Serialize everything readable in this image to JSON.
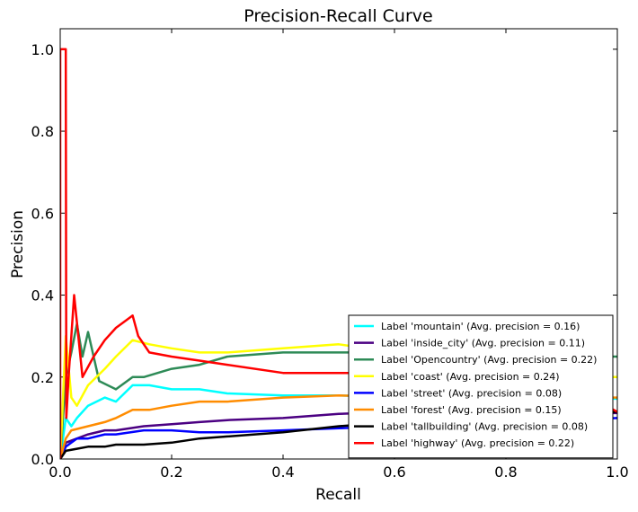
{
  "chart_data": {
    "type": "line",
    "title": "Precision-Recall Curve",
    "xlabel": "Recall",
    "ylabel": "Precision",
    "xlim": [
      0.0,
      1.0
    ],
    "ylim": [
      0.0,
      1.05
    ],
    "xticks": [
      "0.0",
      "0.2",
      "0.4",
      "0.6",
      "0.8",
      "1.0"
    ],
    "yticks": [
      "0.0",
      "0.2",
      "0.4",
      "0.6",
      "0.8",
      "1.0"
    ],
    "grid": false,
    "legend_position": "lower-right",
    "series": [
      {
        "name": "Label 'mountain' (Avg. precision = 0.16)",
        "color": "#00ffff",
        "x": [
          0.0,
          0.01,
          0.02,
          0.03,
          0.05,
          0.08,
          0.1,
          0.13,
          0.16,
          0.2,
          0.25,
          0.3,
          0.4,
          0.5,
          0.6,
          0.7,
          0.8,
          0.9,
          1.0
        ],
        "y": [
          0.0,
          0.1,
          0.08,
          0.1,
          0.13,
          0.15,
          0.14,
          0.18,
          0.18,
          0.17,
          0.17,
          0.16,
          0.155,
          0.155,
          0.152,
          0.152,
          0.15,
          0.148,
          0.147
        ]
      },
      {
        "name": "Label 'inside_city' (Avg. precision = 0.11)",
        "color": "#4b0082",
        "x": [
          0.0,
          0.01,
          0.03,
          0.05,
          0.08,
          0.1,
          0.15,
          0.2,
          0.25,
          0.3,
          0.4,
          0.5,
          0.6,
          0.7,
          0.8,
          0.9,
          1.0
        ],
        "y": [
          0.0,
          0.04,
          0.05,
          0.06,
          0.07,
          0.07,
          0.08,
          0.085,
          0.09,
          0.095,
          0.1,
          0.11,
          0.115,
          0.115,
          0.113,
          0.112,
          0.112
        ]
      },
      {
        "name": "Label 'Opencountry' (Avg. precision = 0.22)",
        "color": "#2e8b57",
        "x": [
          0.0,
          0.01,
          0.02,
          0.03,
          0.04,
          0.05,
          0.07,
          0.1,
          0.13,
          0.15,
          0.2,
          0.25,
          0.3,
          0.4,
          0.5,
          0.6,
          0.7,
          0.8,
          0.9,
          1.0
        ],
        "y": [
          0.0,
          0.2,
          0.26,
          0.33,
          0.25,
          0.31,
          0.19,
          0.17,
          0.2,
          0.2,
          0.22,
          0.23,
          0.25,
          0.26,
          0.26,
          0.26,
          0.26,
          0.255,
          0.25,
          0.25
        ]
      },
      {
        "name": "Label 'coast' (Avg. precision = 0.24)",
        "color": "#ffff00",
        "x": [
          0.0,
          0.01,
          0.02,
          0.03,
          0.05,
          0.08,
          0.1,
          0.13,
          0.16,
          0.2,
          0.25,
          0.3,
          0.4,
          0.5,
          0.6,
          0.7,
          0.8,
          0.9,
          1.0
        ],
        "y": [
          0.0,
          0.3,
          0.15,
          0.13,
          0.18,
          0.22,
          0.25,
          0.29,
          0.28,
          0.27,
          0.26,
          0.26,
          0.27,
          0.28,
          0.26,
          0.25,
          0.23,
          0.2,
          0.2
        ]
      },
      {
        "name": "Label 'street' (Avg. precision = 0.08)",
        "color": "#0000ff",
        "x": [
          0.0,
          0.01,
          0.03,
          0.05,
          0.08,
          0.1,
          0.15,
          0.2,
          0.25,
          0.3,
          0.4,
          0.5,
          0.6,
          0.7,
          0.8,
          0.9,
          1.0
        ],
        "y": [
          0.0,
          0.03,
          0.05,
          0.05,
          0.06,
          0.06,
          0.07,
          0.07,
          0.065,
          0.065,
          0.07,
          0.075,
          0.08,
          0.085,
          0.09,
          0.095,
          0.1
        ]
      },
      {
        "name": "Label 'forest' (Avg. precision = 0.15)",
        "color": "#ff8c00",
        "x": [
          0.0,
          0.01,
          0.02,
          0.05,
          0.08,
          0.1,
          0.13,
          0.16,
          0.2,
          0.25,
          0.3,
          0.4,
          0.5,
          0.6,
          0.7,
          0.8,
          0.9,
          1.0
        ],
        "y": [
          0.0,
          0.05,
          0.07,
          0.08,
          0.09,
          0.1,
          0.12,
          0.12,
          0.13,
          0.14,
          0.14,
          0.15,
          0.155,
          0.152,
          0.15,
          0.15,
          0.15,
          0.15
        ]
      },
      {
        "name": "Label 'tallbuilding' (Avg. precision = 0.08)",
        "color": "#000000",
        "x": [
          0.0,
          0.01,
          0.03,
          0.05,
          0.08,
          0.1,
          0.15,
          0.2,
          0.25,
          0.3,
          0.4,
          0.5,
          0.6,
          0.7,
          0.8,
          0.9,
          1.0
        ],
        "y": [
          0.0,
          0.02,
          0.025,
          0.03,
          0.03,
          0.035,
          0.035,
          0.04,
          0.05,
          0.055,
          0.065,
          0.08,
          0.09,
          0.1,
          0.105,
          0.11,
          0.115
        ]
      },
      {
        "name": "Label 'highway' (Avg. precision = 0.22)",
        "color": "#ff0000",
        "x": [
          0.0,
          0.0,
          0.01,
          0.011,
          0.015,
          0.02,
          0.025,
          0.04,
          0.06,
          0.08,
          0.1,
          0.12,
          0.13,
          0.14,
          0.16,
          0.2,
          0.25,
          0.3,
          0.4,
          0.5,
          0.6,
          0.7,
          0.8,
          0.9,
          1.0
        ],
        "y": [
          0.0,
          1.0,
          1.0,
          0.1,
          0.2,
          0.3,
          0.4,
          0.2,
          0.25,
          0.29,
          0.32,
          0.34,
          0.35,
          0.3,
          0.26,
          0.25,
          0.24,
          0.23,
          0.21,
          0.21,
          0.21,
          0.21,
          0.2,
          0.19,
          0.115
        ]
      }
    ]
  }
}
